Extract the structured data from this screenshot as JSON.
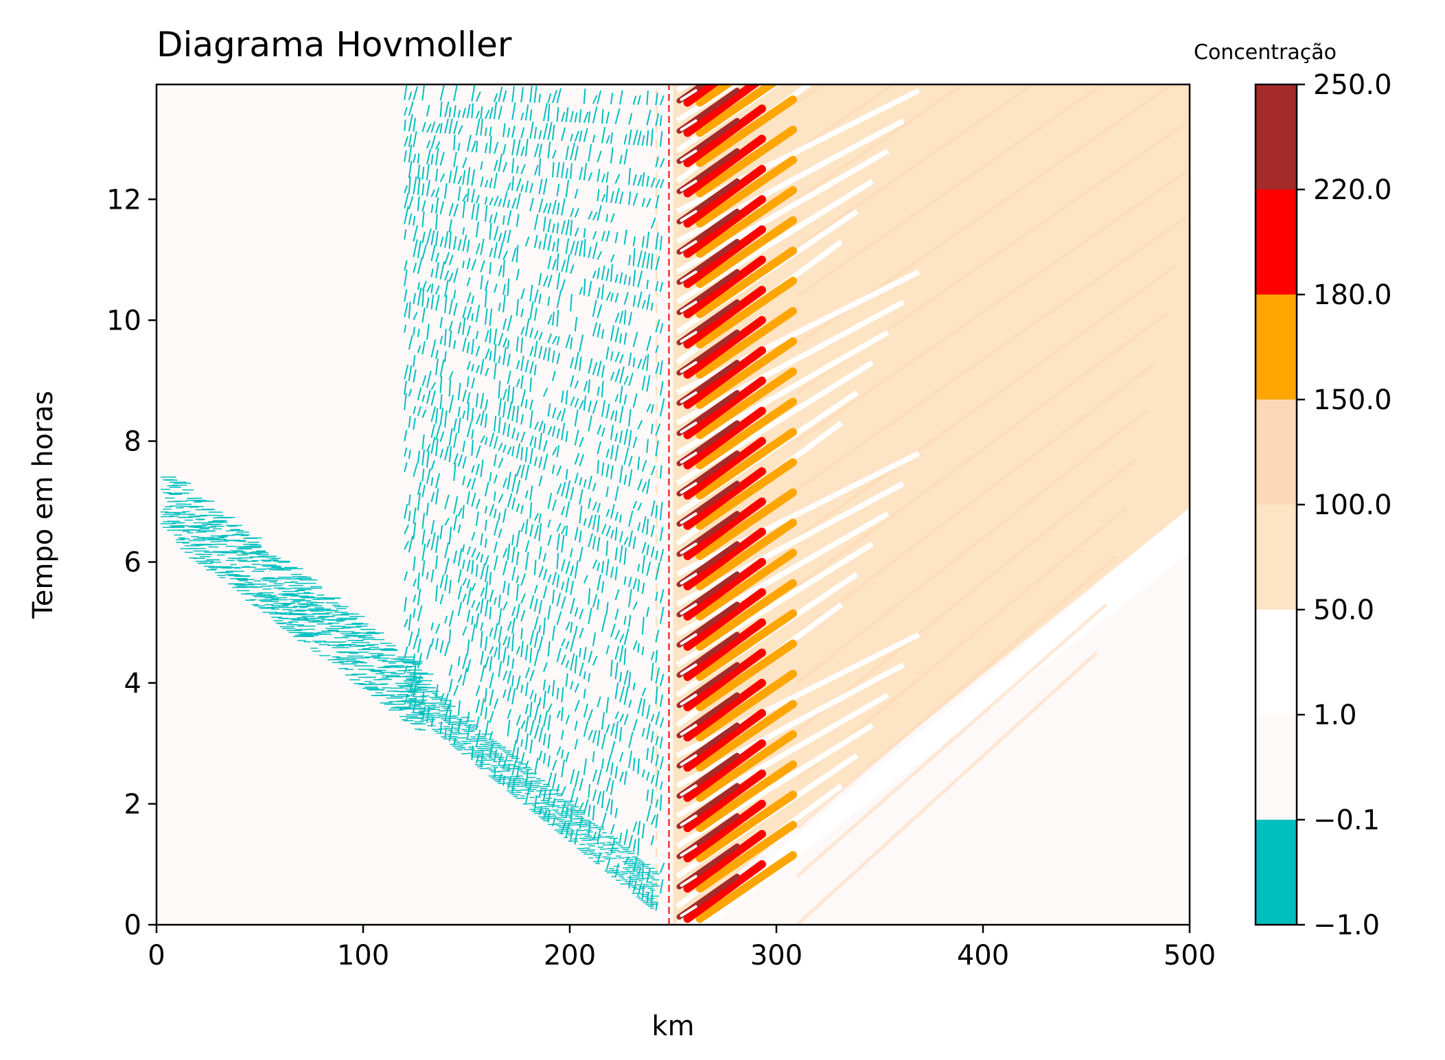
{
  "chart_data": {
    "type": "heatmap",
    "subtype": "filled-contour (Hovmoller diagram)",
    "title": "Diagrama Hovmoller",
    "xlabel": "km",
    "ylabel": "Tempo em horas",
    "xlim": [
      0,
      500
    ],
    "ylim": [
      0,
      13.9
    ],
    "x_ticks": [
      "0",
      "100",
      "200",
      "300",
      "400",
      "500"
    ],
    "x_tick_values": [
      0,
      100,
      200,
      300,
      400,
      500
    ],
    "y_ticks": [
      "0",
      "2",
      "4",
      "6",
      "8",
      "10",
      "12"
    ],
    "y_tick_values": [
      0,
      2,
      4,
      6,
      8,
      10,
      12
    ],
    "grid": false,
    "colorbar": {
      "title": "Concentração",
      "tick_labels": [
        "−1.0",
        "−0.1",
        "1.0",
        "50.0",
        "100.0",
        "150.0",
        "180.0",
        "220.0",
        "250.0"
      ],
      "levels": [
        -1.0,
        -0.1,
        1.0,
        50.0,
        100.0,
        150.0,
        180.0,
        220.0,
        250.0
      ],
      "colors": [
        "#00bfbf",
        "#fdf9f8",
        "#ffffff",
        "#fde4c4",
        "#fdd8b6",
        "#ffa500",
        "#ff0000",
        "#a52a2a"
      ]
    },
    "features": {
      "source_x_km": 250,
      "background_value_band": "-0.1 to 1.0",
      "plume_band": "50.0 to 100.0",
      "plume_edge_top_right_hours": 6.9,
      "plume_reaches_x_km_at_hours": [
        [
          250,
          0
        ],
        [
          500,
          6.9
        ]
      ],
      "oscillation_period_hours": 0.5,
      "negative_region_x_km": [
        0,
        245
      ]
    }
  }
}
